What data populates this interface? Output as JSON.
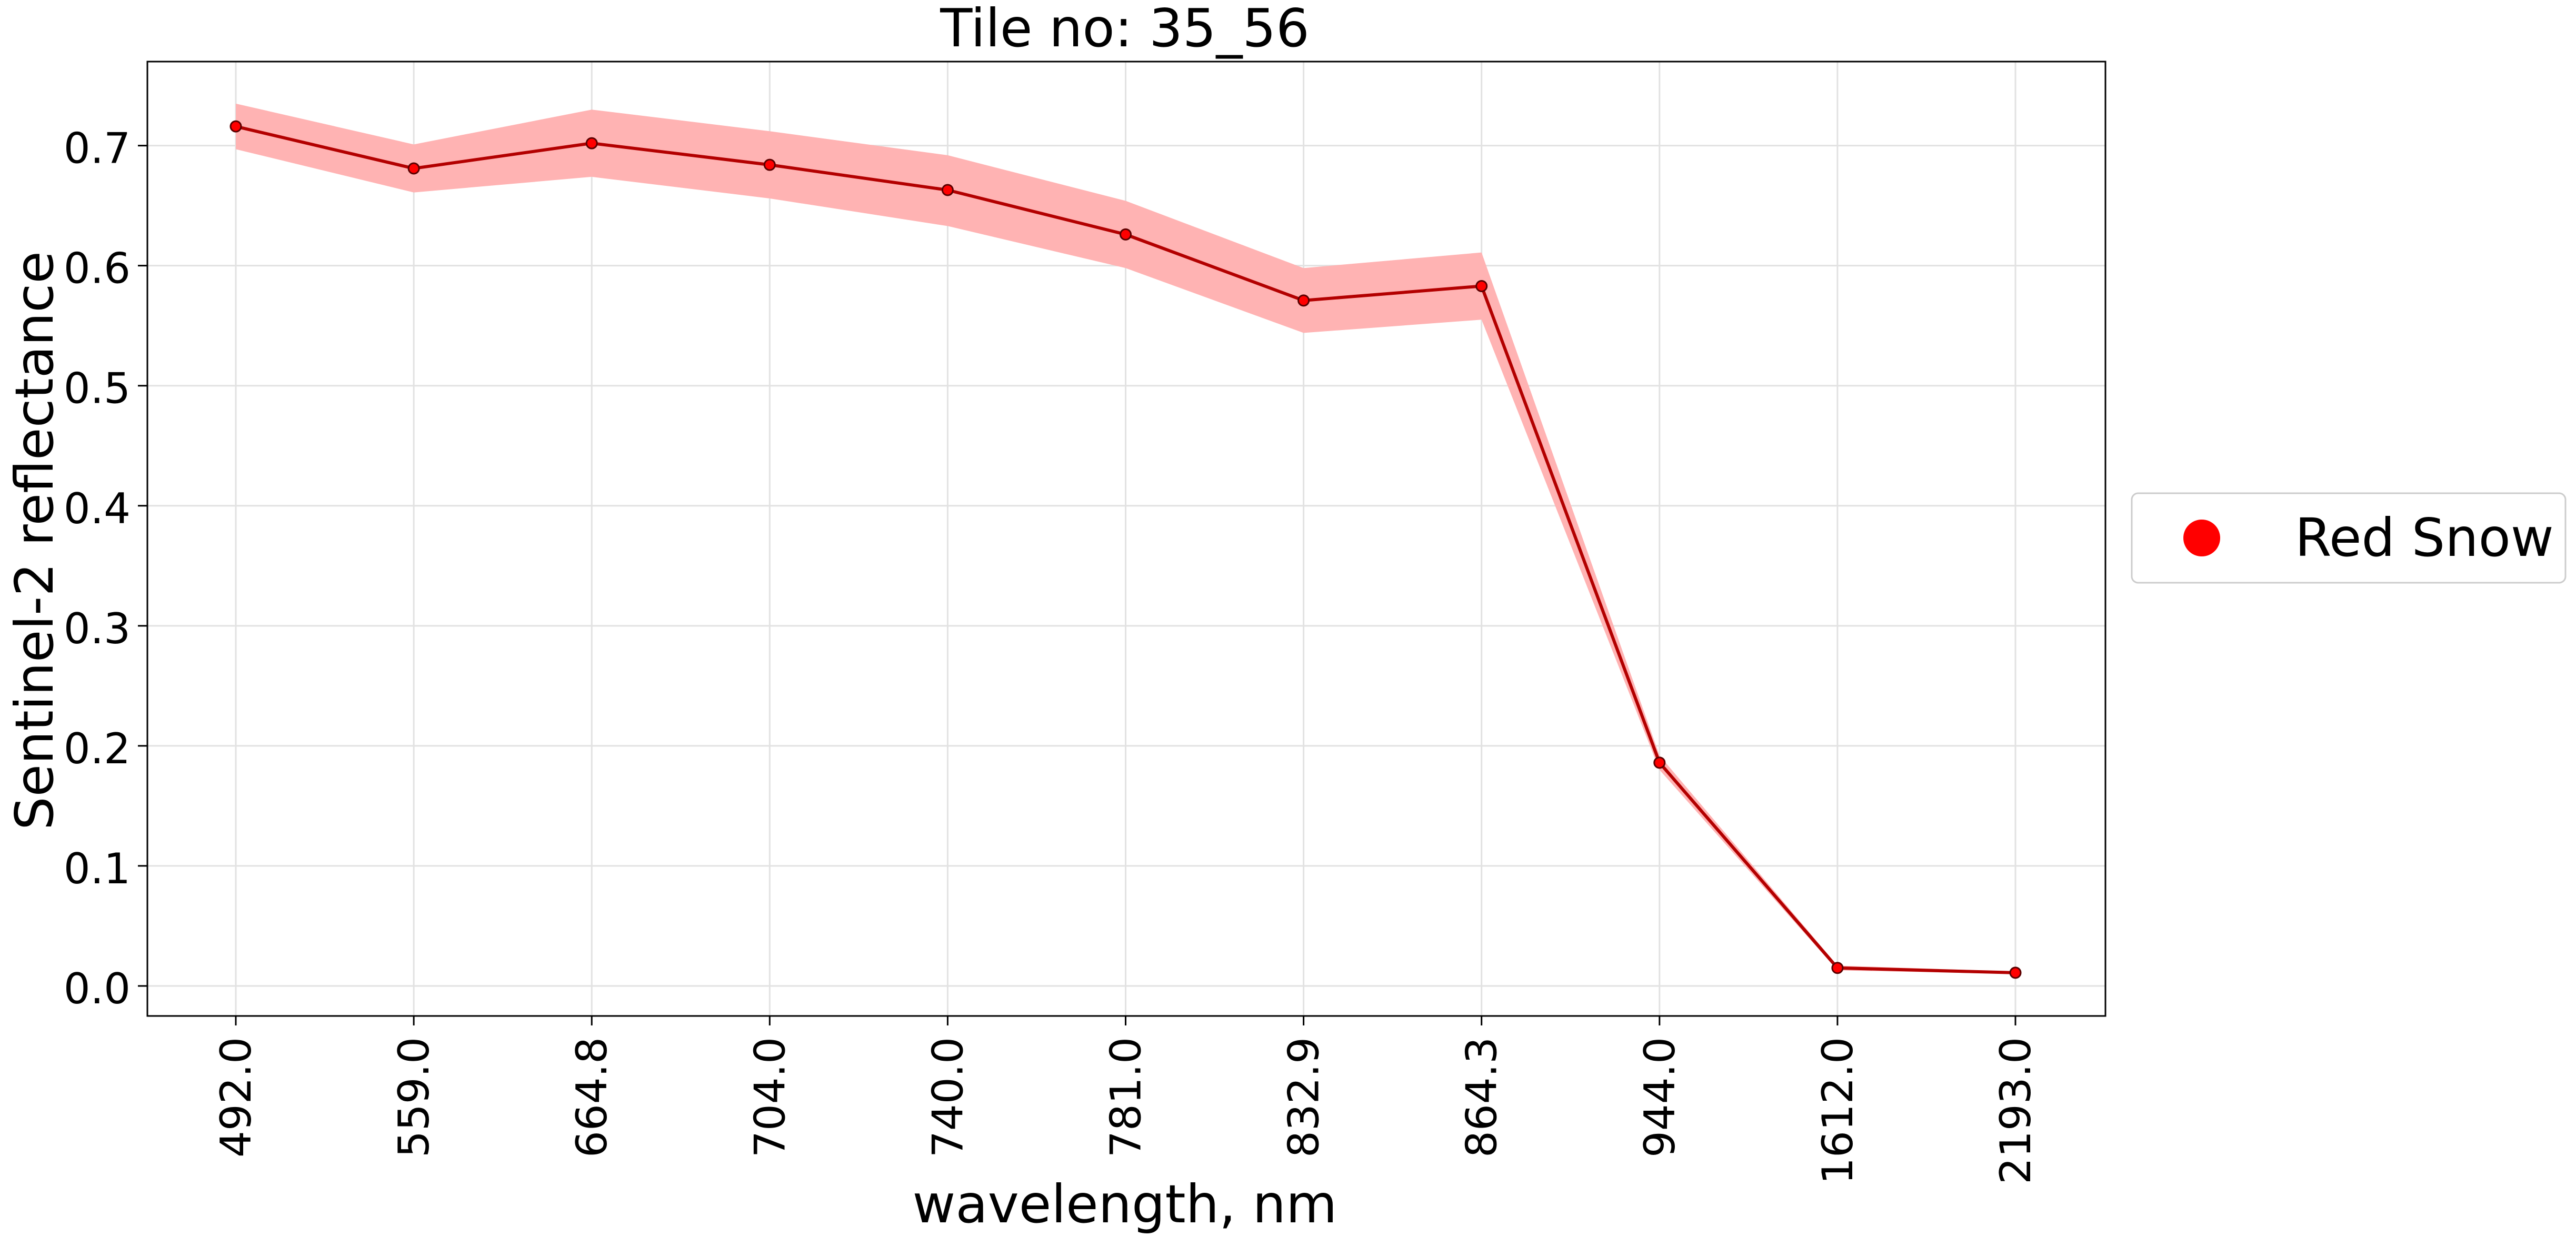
{
  "chart_data": {
    "type": "line",
    "title": "Tile no: 35_56",
    "xlabel": "wavelength, nm",
    "ylabel": "Sentinel-2 reflectance",
    "categories": [
      "492.0",
      "559.0",
      "664.8",
      "704.0",
      "740.0",
      "781.0",
      "832.9",
      "864.3",
      "944.0",
      "1612.0",
      "2193.0"
    ],
    "ylim": [
      -0.025,
      0.77
    ],
    "yticks": [
      "0.0",
      "0.1",
      "0.2",
      "0.3",
      "0.4",
      "0.5",
      "0.6",
      "0.7"
    ],
    "grid": true,
    "legend_position": "right",
    "series": [
      {
        "name": "Red Snow",
        "values": [
          0.716,
          0.681,
          0.702,
          0.684,
          0.663,
          0.626,
          0.571,
          0.583,
          0.186,
          0.015,
          0.011
        ],
        "upper": [
          0.735,
          0.701,
          0.73,
          0.712,
          0.692,
          0.654,
          0.598,
          0.611,
          0.192,
          0.017,
          0.012
        ],
        "lower": [
          0.697,
          0.661,
          0.674,
          0.656,
          0.633,
          0.598,
          0.544,
          0.555,
          0.18,
          0.013,
          0.01
        ],
        "line_color": "#b30000",
        "marker_color": "#ff0000",
        "band_color": "#ffb3b3"
      }
    ]
  }
}
